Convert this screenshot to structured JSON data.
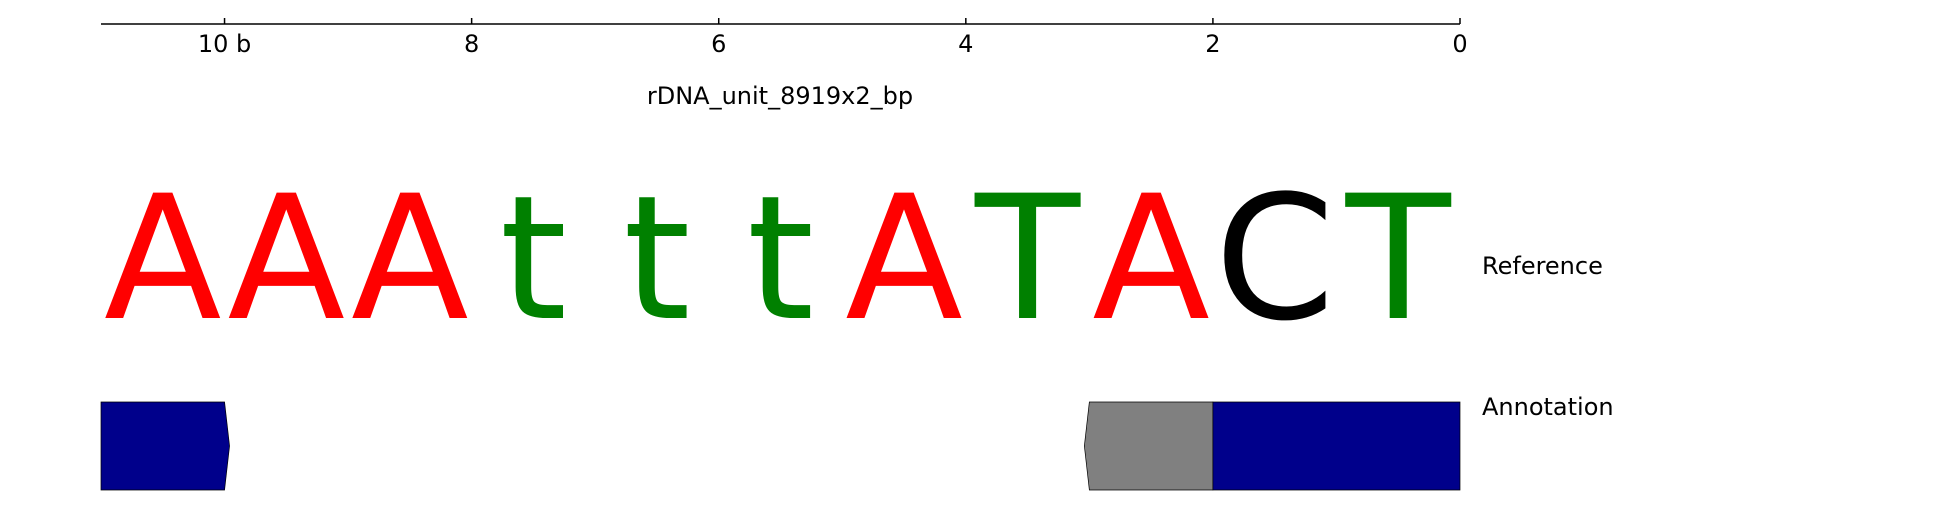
{
  "axis": {
    "title": "rDNA_unit_8919x2_bp",
    "ticks": [
      {
        "value": 10,
        "label": "10 b"
      },
      {
        "value": 8,
        "label": "8"
      },
      {
        "value": 6,
        "label": "6"
      },
      {
        "value": 4,
        "label": "4"
      },
      {
        "value": 2,
        "label": "2"
      },
      {
        "value": 0,
        "label": "0"
      }
    ],
    "range": [
      11,
      0
    ],
    "direction": "decreasing-left-to-right"
  },
  "reference": {
    "label": "Reference",
    "bases": [
      "A",
      "A",
      "A",
      "t",
      "t",
      "t",
      "A",
      "T",
      "A",
      "C",
      "T"
    ],
    "base_colors": {
      "A": "#ff0000",
      "T": "#008000",
      "t": "#008000",
      "C": "#000000",
      "G": "#ffa500"
    }
  },
  "annotation": {
    "label": "Annotation",
    "features": [
      {
        "start": 11,
        "end": 10,
        "color": "#00008b",
        "strand": "reverse-pointing-right"
      },
      {
        "start": 3,
        "end": 2,
        "color": "#808080",
        "strand": "pointing-left"
      },
      {
        "start": 2,
        "end": 0,
        "color": "#00008b",
        "strand": "none"
      }
    ]
  }
}
